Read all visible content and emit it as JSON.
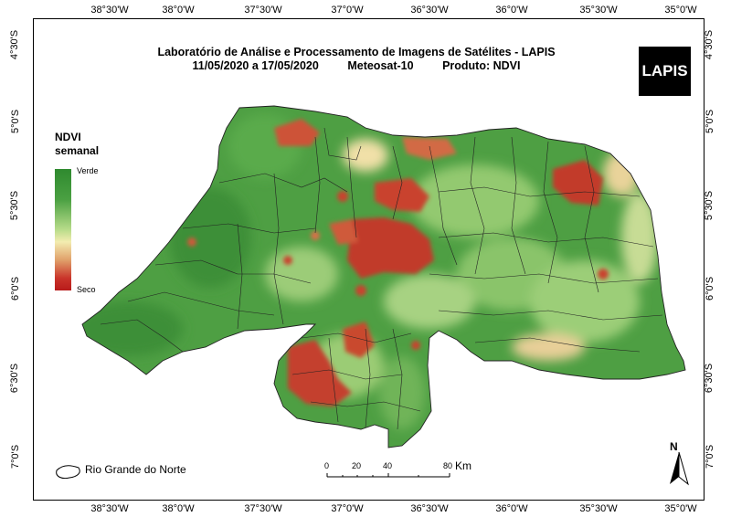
{
  "title": {
    "line1": "Laboratório de Análise e Processamento de Imagens de Satélites - LAPIS",
    "date_range": "11/05/2020  a  17/05/2020",
    "satellite": "Meteosat-10",
    "product": "Produto: NDVI"
  },
  "logo_text": "LAPIS",
  "legend": {
    "title_line1": "NDVI",
    "title_line2": "semanal",
    "high_label": "Verde",
    "low_label": "Seco",
    "colors": [
      "#2f8a2f",
      "#4aa042",
      "#b8dc8a",
      "#f3ecb0",
      "#e0a06a",
      "#c9342a",
      "#b81a1a"
    ]
  },
  "longitude_ticks": [
    "38°30'W",
    "38°0'W",
    "37°30'W",
    "37°0'W",
    "36°30'W",
    "36°0'W",
    "35°30'W",
    "35°0'W"
  ],
  "latitude_ticks": [
    "4°30'S",
    "5°0'S",
    "5°30'S",
    "6°0'S",
    "6°30'S",
    "7°0'S"
  ],
  "region_legend_label": "Rio Grande do Norte",
  "scale_bar": {
    "ticks": [
      "0",
      "20",
      "40",
      "80"
    ],
    "unit": "Km"
  },
  "north_label": "N"
}
